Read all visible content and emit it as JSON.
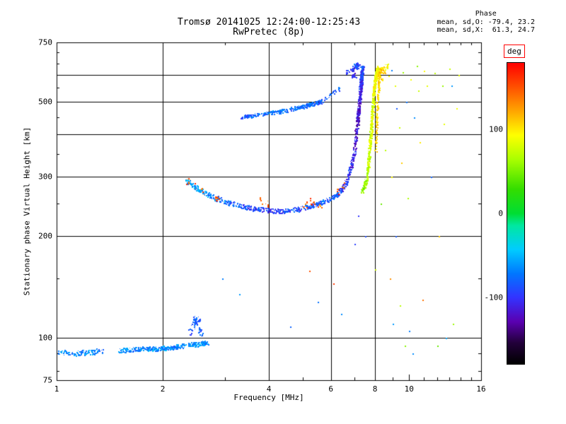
{
  "chart_data": {
    "type": "scatter",
    "title": "Tromsø 20141025 12:24:00-12:25:43",
    "subtitle": "RwPretec (8p)",
    "xlabel": "Frequency [MHz]",
    "ylabel": "Stationary phase Virtual Height [km]",
    "x_scale": "log",
    "y_scale": "log",
    "xlim": [
      1,
      16
    ],
    "ylim": [
      75,
      750
    ],
    "x_ticks": {
      "values": [
        1,
        2,
        4,
        6,
        8,
        10,
        16
      ],
      "labels": [
        "1",
        "2",
        "4",
        "6",
        "8",
        "10",
        "16"
      ]
    },
    "y_ticks": {
      "values": [
        750,
        500,
        300,
        200,
        100,
        75
      ],
      "labels": [
        "750",
        "500",
        "300",
        "200",
        "100",
        "75"
      ]
    },
    "x_minor_ticks": [
      3,
      5,
      7,
      9,
      11,
      12,
      13,
      14,
      15
    ],
    "y_minor_ticks": [
      80,
      90,
      150,
      250,
      350,
      450,
      550,
      650,
      700
    ],
    "x_gridlines": [
      2,
      4,
      6,
      8
    ],
    "y_gridlines": [
      100,
      200,
      300,
      400,
      500,
      600
    ],
    "grid": true,
    "annotations": {
      "heading": "Phase",
      "o_stats": "mean, sd,O: -79.4, 23.2",
      "x_stats": "mean, sd,X:  61.3, 24.7"
    },
    "colorbar": {
      "label": "deg",
      "label_box_color": "#ff0000",
      "range": [
        -180,
        180
      ],
      "ticks": [
        {
          "value": 100,
          "label": "100"
        },
        {
          "value": 0,
          "label": "0"
        },
        {
          "value": -100,
          "label": "-100"
        }
      ],
      "stops": [
        [
          0.0,
          "#000000"
        ],
        [
          0.07,
          "#22003a"
        ],
        [
          0.14,
          "#5a00b0"
        ],
        [
          0.22,
          "#3333ff"
        ],
        [
          0.3,
          "#0077ff"
        ],
        [
          0.38,
          "#00ccff"
        ],
        [
          0.46,
          "#00e8a0"
        ],
        [
          0.5,
          "#00dd33"
        ],
        [
          0.58,
          "#33dd00"
        ],
        [
          0.68,
          "#aaff00"
        ],
        [
          0.76,
          "#ffff00"
        ],
        [
          0.84,
          "#ffa500"
        ],
        [
          0.92,
          "#ff5000"
        ],
        [
          1.0,
          "#ff0000"
        ]
      ]
    },
    "traces": [
      {
        "name": "sporadic-e-left",
        "mode": "line",
        "n": 110,
        "jitter_f": 0.02,
        "jitter_h": 0.014,
        "jitter_p": 40,
        "points": [
          [
            1.0,
            91,
            -65
          ],
          [
            1.12,
            90,
            -75
          ],
          [
            1.25,
            91,
            -60
          ],
          [
            1.33,
            92,
            -70
          ]
        ]
      },
      {
        "name": "sporadic-e-main",
        "mode": "line",
        "n": 300,
        "jitter_f": 0.014,
        "jitter_h": 0.013,
        "jitter_p": 40,
        "points": [
          [
            1.5,
            92,
            -60
          ],
          [
            1.7,
            93,
            -72
          ],
          [
            1.9,
            93,
            -60
          ],
          [
            2.1,
            94,
            -72
          ],
          [
            2.3,
            95,
            -62
          ]
        ]
      },
      {
        "name": "sporadic-e-right",
        "mode": "line",
        "n": 90,
        "jitter_f": 0.012,
        "jitter_h": 0.013,
        "jitter_p": 35,
        "points": [
          [
            2.35,
            96,
            -70
          ],
          [
            2.5,
            96,
            -58
          ],
          [
            2.68,
            97,
            -70
          ]
        ]
      },
      {
        "name": "es-cusp",
        "mode": "line",
        "n": 70,
        "jitter_f": 0.01,
        "jitter_h": 0.03,
        "jitter_p": 30,
        "points": [
          [
            2.37,
            101,
            -85
          ],
          [
            2.43,
            109,
            -88
          ],
          [
            2.48,
            114,
            -80
          ],
          [
            2.53,
            110,
            -84
          ],
          [
            2.58,
            102,
            -80
          ]
        ]
      },
      {
        "name": "f-trace-o-mode",
        "mode": "line",
        "n": 950,
        "jitter_f": 0.008,
        "jitter_h": 0.014,
        "jitter_p": 45,
        "points": [
          [
            2.32,
            294,
            -55
          ],
          [
            2.5,
            278,
            -60
          ],
          [
            2.7,
            265,
            -65
          ],
          [
            2.95,
            255,
            -75
          ],
          [
            3.3,
            247,
            -85
          ],
          [
            3.6,
            242,
            -95
          ],
          [
            4.0,
            239,
            -100
          ],
          [
            4.4,
            238,
            -95
          ],
          [
            4.8,
            241,
            -90
          ],
          [
            5.2,
            245,
            -85
          ],
          [
            5.6,
            251,
            -80
          ],
          [
            6.0,
            259,
            -85
          ],
          [
            6.3,
            269,
            -90
          ],
          [
            6.6,
            287,
            -100
          ],
          [
            6.8,
            315,
            -105
          ],
          [
            6.95,
            350,
            -110
          ],
          [
            7.05,
            395,
            -115
          ],
          [
            7.12,
            440,
            -118
          ],
          [
            7.17,
            480,
            -112
          ],
          [
            7.22,
            520,
            -108
          ],
          [
            7.27,
            560,
            -102
          ],
          [
            7.31,
            600,
            -96
          ],
          [
            7.34,
            628,
            -92
          ]
        ]
      },
      {
        "name": "f-steep-o-column",
        "mode": "line",
        "n": 260,
        "jitter_f": 0.006,
        "jitter_h": 0.012,
        "jitter_p": 40,
        "points": [
          [
            7.14,
            430,
            -125
          ],
          [
            7.19,
            470,
            -120
          ],
          [
            7.24,
            510,
            -113
          ],
          [
            7.28,
            548,
            -107
          ],
          [
            7.32,
            585,
            -100
          ],
          [
            7.35,
            618,
            -95
          ],
          [
            7.37,
            636,
            -90
          ]
        ]
      },
      {
        "name": "warm-specks",
        "mode": "cluster",
        "n": 70,
        "jitter_f": 0.012,
        "jitter_h": 0.02,
        "jitter_p": 45,
        "points": [
          [
            2.35,
            292,
            148
          ],
          [
            2.45,
            283,
            152
          ],
          [
            2.58,
            272,
            142
          ],
          [
            2.85,
            260,
            150
          ],
          [
            3.78,
            256,
            146
          ],
          [
            3.95,
            250,
            152
          ],
          [
            5.05,
            250,
            150
          ],
          [
            5.3,
            254,
            156
          ],
          [
            5.55,
            249,
            144
          ],
          [
            6.25,
            271,
            150
          ],
          [
            6.5,
            283,
            150
          ]
        ]
      },
      {
        "name": "f-upper-branch",
        "mode": "line",
        "n": 320,
        "jitter_f": 0.007,
        "jitter_h": 0.011,
        "jitter_p": 35,
        "points": [
          [
            3.35,
            452,
            -85
          ],
          [
            3.6,
            456,
            -80
          ],
          [
            3.9,
            462,
            -78
          ],
          [
            4.2,
            468,
            -74
          ],
          [
            4.5,
            474,
            -78
          ],
          [
            4.8,
            481,
            -74
          ],
          [
            5.1,
            488,
            -78
          ],
          [
            5.4,
            496,
            -80
          ],
          [
            5.65,
            503,
            -84
          ]
        ]
      },
      {
        "name": "f-upper-sparse",
        "mode": "cluster",
        "n": 26,
        "jitter_f": 0.01,
        "jitter_h": 0.012,
        "jitter_p": 30,
        "points": [
          [
            5.8,
            512,
            -80
          ],
          [
            5.95,
            522,
            -85
          ],
          [
            6.1,
            535,
            -80
          ],
          [
            6.25,
            548,
            -85
          ]
        ]
      },
      {
        "name": "o-top-cluster",
        "mode": "cluster",
        "n": 85,
        "jitter_f": 0.013,
        "jitter_h": 0.013,
        "jitter_p": 40,
        "points": [
          [
            6.7,
            615,
            -95
          ],
          [
            6.85,
            625,
            -100
          ],
          [
            7.0,
            632,
            -90
          ],
          [
            7.08,
            640,
            -85
          ],
          [
            6.95,
            602,
            -108
          ],
          [
            7.15,
            650,
            -90
          ]
        ]
      },
      {
        "name": "x-trace-bottom",
        "mode": "line",
        "n": 80,
        "jitter_f": 0.007,
        "jitter_h": 0.013,
        "jitter_p": 30,
        "points": [
          [
            7.33,
            272,
            52
          ],
          [
            7.45,
            283,
            62
          ],
          [
            7.56,
            296,
            70
          ]
        ]
      },
      {
        "name": "x-steep-column",
        "mode": "line",
        "n": 560,
        "jitter_f": 0.007,
        "jitter_h": 0.012,
        "jitter_p": 35,
        "points": [
          [
            7.6,
            300,
            72
          ],
          [
            7.66,
            335,
            70
          ],
          [
            7.72,
            372,
            76
          ],
          [
            7.78,
            412,
            80
          ],
          [
            7.83,
            452,
            84
          ],
          [
            7.88,
            492,
            80
          ],
          [
            7.92,
            528,
            86
          ],
          [
            7.96,
            560,
            90
          ],
          [
            8.0,
            588,
            86
          ],
          [
            8.05,
            612,
            90
          ],
          [
            8.1,
            632,
            88
          ]
        ]
      },
      {
        "name": "x-yellow-column",
        "mode": "line",
        "n": 170,
        "jitter_f": 0.005,
        "jitter_h": 0.012,
        "jitter_p": 25,
        "points": [
          [
            8.02,
            360,
            104
          ],
          [
            8.07,
            430,
            108
          ],
          [
            8.12,
            495,
            104
          ],
          [
            8.17,
            552,
            107
          ],
          [
            8.22,
            600,
            103
          ],
          [
            8.26,
            628,
            106
          ]
        ]
      },
      {
        "name": "x-top-cluster",
        "mode": "cluster",
        "n": 70,
        "jitter_f": 0.009,
        "jitter_h": 0.012,
        "jitter_p": 30,
        "points": [
          [
            8.15,
            600,
            104
          ],
          [
            8.25,
            620,
            110
          ],
          [
            8.35,
            632,
            100
          ],
          [
            8.45,
            615,
            108
          ],
          [
            8.3,
            590,
            112
          ],
          [
            8.5,
            628,
            104
          ],
          [
            8.6,
            640,
            96
          ]
        ]
      },
      {
        "name": "scattered-echoes",
        "mode": "points",
        "n": 0,
        "jitter_f": 0,
        "jitter_h": 0,
        "jitter_p": 0,
        "points": [
          [
            8.75,
            598,
            95
          ],
          [
            8.9,
            622,
            -70
          ],
          [
            9.1,
            560,
            85
          ],
          [
            9.2,
            480,
            -85
          ],
          [
            9.35,
            420,
            75
          ],
          [
            9.5,
            330,
            110
          ],
          [
            9.6,
            612,
            60
          ],
          [
            9.8,
            500,
            -75
          ],
          [
            9.9,
            260,
            65
          ],
          [
            10.1,
            585,
            90
          ],
          [
            10.3,
            450,
            -65
          ],
          [
            10.5,
            640,
            55
          ],
          [
            10.7,
            380,
            100
          ],
          [
            10.9,
            130,
            140
          ],
          [
            11.2,
            560,
            85
          ],
          [
            11.5,
            300,
            -80
          ],
          [
            11.8,
            610,
            70
          ],
          [
            12.1,
            200,
            110
          ],
          [
            12.4,
            560,
            60
          ],
          [
            12.7,
            100,
            -55
          ],
          [
            13.0,
            628,
            75
          ],
          [
            13.3,
            110,
            60
          ],
          [
            13.6,
            480,
            90
          ],
          [
            9.0,
            110,
            -60
          ],
          [
            9.4,
            125,
            70
          ],
          [
            10.0,
            105,
            -70
          ],
          [
            8.8,
            150,
            130
          ],
          [
            5.2,
            158,
            150
          ],
          [
            5.5,
            128,
            -75
          ],
          [
            6.1,
            145,
            160
          ],
          [
            6.4,
            118,
            -65
          ],
          [
            4.6,
            108,
            -80
          ],
          [
            7.5,
            200,
            -90
          ],
          [
            7.15,
            230,
            -100
          ],
          [
            8.3,
            250,
            45
          ],
          [
            8.0,
            160,
            80
          ],
          [
            2.95,
            150,
            -70
          ],
          [
            3.3,
            135,
            -60
          ],
          [
            12.0,
            95,
            45
          ],
          [
            13.8,
            600,
            85
          ],
          [
            10.2,
            90,
            -65
          ],
          [
            7.0,
            190,
            -95
          ],
          [
            9.7,
            95,
            55
          ],
          [
            11.0,
            620,
            95
          ],
          [
            12.5,
            430,
            85
          ],
          [
            13.2,
            560,
            -60
          ],
          [
            8.55,
            360,
            70
          ],
          [
            8.9,
            300,
            95
          ],
          [
            9.15,
            200,
            -85
          ],
          [
            10.6,
            540,
            75
          ]
        ]
      }
    ]
  }
}
